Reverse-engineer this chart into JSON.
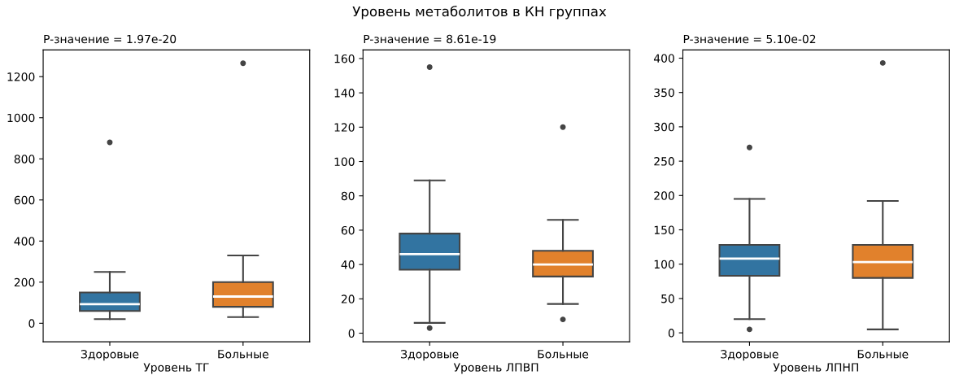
{
  "chart_data": [
    {
      "type": "box",
      "title": "P-значение = 1.97e-20",
      "xlabel": "Уровень ТГ",
      "annotations": [
        "Уровень метаболитов в КН группах"
      ],
      "categories": [
        "Здоровые",
        "Больные"
      ],
      "colors": [
        "#3274a1",
        "#e1812c"
      ],
      "ylim": [
        -90,
        1330
      ],
      "yticks": [
        0,
        200,
        400,
        600,
        800,
        1000,
        1200
      ],
      "grid": false,
      "boxes": [
        {
          "low": 20,
          "q1": 60,
          "median": 93,
          "q3": 150,
          "high": 250,
          "outliers": [
            880
          ]
        },
        {
          "low": 30,
          "q1": 80,
          "median": 130,
          "q3": 200,
          "high": 330,
          "outliers": [
            1265
          ]
        }
      ]
    },
    {
      "type": "box",
      "title": "P-значение = 8.61e-19",
      "xlabel": "Уровень ЛПВП",
      "categories": [
        "Здоровые",
        "Больные"
      ],
      "colors": [
        "#3274a1",
        "#e1812c"
      ],
      "ylim": [
        -5,
        165
      ],
      "yticks": [
        0,
        20,
        40,
        60,
        80,
        100,
        120,
        140,
        160
      ],
      "grid": false,
      "boxes": [
        {
          "low": 6,
          "q1": 37,
          "median": 46,
          "q3": 58,
          "high": 89,
          "outliers": [
            3,
            155
          ]
        },
        {
          "low": 17,
          "q1": 33,
          "median": 40,
          "q3": 48,
          "high": 66,
          "outliers": [
            8,
            120
          ]
        }
      ]
    },
    {
      "type": "box",
      "title": "P-значение = 5.10e-02",
      "xlabel": "Уровень ЛПНП",
      "categories": [
        "Здоровые",
        "Больные"
      ],
      "colors": [
        "#3274a1",
        "#e1812c"
      ],
      "ylim": [
        -13,
        412
      ],
      "yticks": [
        0,
        50,
        100,
        150,
        200,
        250,
        300,
        350,
        400
      ],
      "grid": false,
      "boxes": [
        {
          "low": 20,
          "q1": 83,
          "median": 108,
          "q3": 128,
          "high": 195,
          "outliers": [
            5,
            270
          ]
        },
        {
          "low": 5,
          "q1": 80,
          "median": 103,
          "q3": 128,
          "high": 192,
          "outliers": [
            393
          ]
        }
      ]
    }
  ]
}
